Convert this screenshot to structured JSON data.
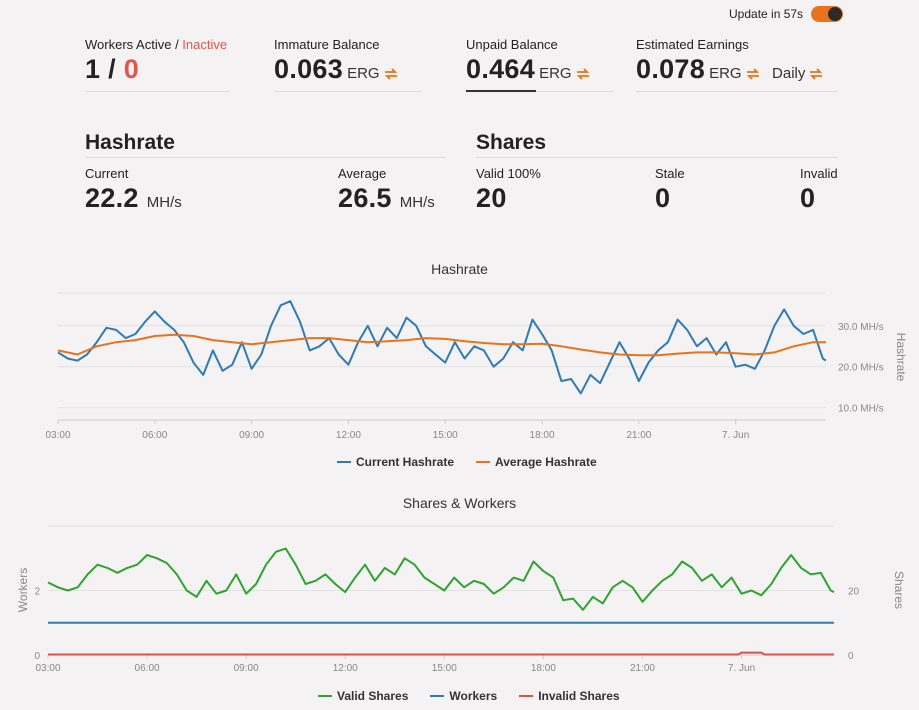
{
  "header": {
    "update_label": "Update in 57s",
    "toggle_on": true,
    "toggle_color": "#e8731c"
  },
  "stats": {
    "workers": {
      "label": "Workers Active",
      "sep": " / ",
      "inactive_label": "Inactive",
      "active": "1",
      "slash": " / ",
      "inactive": "0"
    },
    "immature": {
      "label": "Immature Balance",
      "value": "0.063",
      "unit": "ERG"
    },
    "unpaid": {
      "label": "Unpaid Balance",
      "value": "0.464",
      "unit": "ERG"
    },
    "estimated": {
      "label": "Estimated Earnings",
      "value": "0.078",
      "unit": "ERG",
      "period": "Daily"
    }
  },
  "hashrate": {
    "title": "Hashrate",
    "current_label": "Current",
    "current_value": "22.2",
    "current_unit": "MH/s",
    "average_label": "Average",
    "average_value": "26.5",
    "average_unit": "MH/s"
  },
  "shares": {
    "title": "Shares",
    "valid_label": "Valid 100%",
    "valid_value": "20",
    "stale_label": "Stale",
    "stale_value": "0",
    "invalid_label": "Invalid",
    "invalid_value": "0"
  },
  "colors": {
    "orange": "#e8731c",
    "blue": "#2e7bb5",
    "green": "#2fa32f",
    "workers_blue": "#2e7bb5",
    "red": "#d9534f"
  },
  "chart_data": [
    {
      "type": "line",
      "title": "Hashrate",
      "ylabel": "Hashrate",
      "ylim": [
        7,
        38
      ],
      "y_ticks": [
        "10.0 MH/s",
        "20.0 MH/s",
        "30.0 MH/s"
      ],
      "y_tick_values": [
        10,
        20,
        30
      ],
      "x_ticks": [
        "03:00",
        "06:00",
        "09:00",
        "12:00",
        "15:00",
        "18:00",
        "21:00",
        "7. Jun"
      ],
      "x_tick_hours": [
        3,
        6,
        9,
        12,
        15,
        18,
        21,
        24
      ],
      "xlim_hours": [
        3,
        26.8
      ],
      "series": [
        {
          "name": "Current Hashrate",
          "color": "#2e7bb5",
          "points": [
            [
              3.0,
              23.5
            ],
            [
              3.3,
              22
            ],
            [
              3.6,
              21.5
            ],
            [
              3.9,
              23
            ],
            [
              4.2,
              26
            ],
            [
              4.5,
              29.5
            ],
            [
              4.8,
              29
            ],
            [
              5.1,
              27
            ],
            [
              5.4,
              28
            ],
            [
              5.7,
              31
            ],
            [
              6.0,
              33.5
            ],
            [
              6.3,
              31
            ],
            [
              6.6,
              29
            ],
            [
              6.9,
              26
            ],
            [
              7.2,
              21
            ],
            [
              7.5,
              18
            ],
            [
              7.8,
              24
            ],
            [
              8.1,
              19
            ],
            [
              8.4,
              20.5
            ],
            [
              8.7,
              26
            ],
            [
              9.0,
              19.5
            ],
            [
              9.3,
              23
            ],
            [
              9.6,
              30
            ],
            [
              9.9,
              35
            ],
            [
              10.2,
              36
            ],
            [
              10.5,
              31
            ],
            [
              10.8,
              24
            ],
            [
              11.1,
              25
            ],
            [
              11.4,
              27
            ],
            [
              11.7,
              23
            ],
            [
              12.0,
              20.5
            ],
            [
              12.3,
              26
            ],
            [
              12.6,
              30
            ],
            [
              12.9,
              25
            ],
            [
              13.2,
              29.5
            ],
            [
              13.5,
              27
            ],
            [
              13.8,
              32
            ],
            [
              14.1,
              30
            ],
            [
              14.4,
              25
            ],
            [
              14.7,
              23
            ],
            [
              15.0,
              21
            ],
            [
              15.3,
              26
            ],
            [
              15.6,
              22
            ],
            [
              15.9,
              25
            ],
            [
              16.2,
              24
            ],
            [
              16.5,
              20
            ],
            [
              16.8,
              22
            ],
            [
              17.1,
              26
            ],
            [
              17.4,
              24
            ],
            [
              17.7,
              31.5
            ],
            [
              18.0,
              28
            ],
            [
              18.3,
              24
            ],
            [
              18.6,
              16.5
            ],
            [
              18.9,
              17
            ],
            [
              19.2,
              13.5
            ],
            [
              19.5,
              18
            ],
            [
              19.8,
              16
            ],
            [
              20.1,
              21
            ],
            [
              20.4,
              26
            ],
            [
              20.7,
              22
            ],
            [
              21.0,
              16.5
            ],
            [
              21.3,
              21
            ],
            [
              21.6,
              24
            ],
            [
              21.9,
              26
            ],
            [
              22.2,
              31.5
            ],
            [
              22.5,
              29
            ],
            [
              22.8,
              25
            ],
            [
              23.1,
              27
            ],
            [
              23.4,
              23
            ],
            [
              23.7,
              26
            ],
            [
              24.0,
              20
            ],
            [
              24.3,
              20.5
            ],
            [
              24.6,
              19.5
            ],
            [
              24.9,
              24
            ],
            [
              25.2,
              30
            ],
            [
              25.5,
              34
            ],
            [
              25.8,
              30
            ],
            [
              26.1,
              28
            ],
            [
              26.4,
              29
            ],
            [
              26.7,
              22
            ],
            [
              26.8,
              21.5
            ]
          ]
        },
        {
          "name": "Average Hashrate",
          "color": "#e8731c",
          "points": [
            [
              3.0,
              24
            ],
            [
              3.6,
              23
            ],
            [
              4.2,
              25
            ],
            [
              4.8,
              26
            ],
            [
              5.4,
              26.5
            ],
            [
              6.0,
              27.5
            ],
            [
              6.6,
              27.8
            ],
            [
              7.2,
              27.5
            ],
            [
              7.8,
              26.5
            ],
            [
              8.4,
              26
            ],
            [
              9.0,
              25.5
            ],
            [
              9.6,
              26
            ],
            [
              10.2,
              26.5
            ],
            [
              10.8,
              27
            ],
            [
              11.4,
              27
            ],
            [
              12.0,
              26.5
            ],
            [
              12.6,
              26
            ],
            [
              13.2,
              26.2
            ],
            [
              13.8,
              26.5
            ],
            [
              14.4,
              27
            ],
            [
              15.0,
              26.8
            ],
            [
              15.6,
              26.2
            ],
            [
              16.2,
              25.8
            ],
            [
              16.8,
              25.5
            ],
            [
              17.4,
              25.5
            ],
            [
              18.0,
              25.6
            ],
            [
              18.6,
              25
            ],
            [
              19.2,
              24.2
            ],
            [
              19.8,
              23.5
            ],
            [
              20.4,
              23
            ],
            [
              21.0,
              22.8
            ],
            [
              21.6,
              22.8
            ],
            [
              22.2,
              23.2
            ],
            [
              22.8,
              23.5
            ],
            [
              23.4,
              23.5
            ],
            [
              24.0,
              23.3
            ],
            [
              24.6,
              23
            ],
            [
              25.2,
              23.5
            ],
            [
              25.8,
              25
            ],
            [
              26.4,
              26
            ],
            [
              26.8,
              26
            ]
          ]
        }
      ]
    },
    {
      "type": "line",
      "title": "Shares & Workers",
      "ylabel_left": "Workers",
      "ylabel_right": "Shares",
      "y_ticks_left": [
        "0",
        "2"
      ],
      "y_ticks_right": [
        "0",
        "20"
      ],
      "x_ticks": [
        "03:00",
        "06:00",
        "09:00",
        "12:00",
        "15:00",
        "18:00",
        "21:00",
        "7. Jun"
      ],
      "x_tick_hours": [
        3,
        6,
        9,
        12,
        15,
        18,
        21,
        24
      ],
      "xlim_hours": [
        3,
        26.8
      ],
      "ylim_shares": [
        0,
        40
      ],
      "ylim_workers": [
        0,
        4
      ],
      "series": [
        {
          "name": "Valid Shares",
          "color": "#2fa32f",
          "points": [
            [
              3.0,
              22.5
            ],
            [
              3.3,
              21
            ],
            [
              3.6,
              20
            ],
            [
              3.9,
              21
            ],
            [
              4.2,
              25
            ],
            [
              4.5,
              28
            ],
            [
              4.8,
              27
            ],
            [
              5.1,
              25.5
            ],
            [
              5.4,
              27
            ],
            [
              5.7,
              28
            ],
            [
              6.0,
              31
            ],
            [
              6.3,
              30
            ],
            [
              6.6,
              28.5
            ],
            [
              6.9,
              25
            ],
            [
              7.2,
              20
            ],
            [
              7.5,
              18
            ],
            [
              7.8,
              23
            ],
            [
              8.1,
              19
            ],
            [
              8.4,
              20
            ],
            [
              8.7,
              25
            ],
            [
              9.0,
              19
            ],
            [
              9.3,
              22
            ],
            [
              9.6,
              28
            ],
            [
              9.9,
              32
            ],
            [
              10.2,
              33
            ],
            [
              10.5,
              28
            ],
            [
              10.8,
              22
            ],
            [
              11.1,
              23
            ],
            [
              11.4,
              25
            ],
            [
              11.7,
              22
            ],
            [
              12.0,
              19.5
            ],
            [
              12.3,
              24
            ],
            [
              12.6,
              28
            ],
            [
              12.9,
              23
            ],
            [
              13.2,
              27
            ],
            [
              13.5,
              25
            ],
            [
              13.8,
              30
            ],
            [
              14.1,
              28
            ],
            [
              14.4,
              24
            ],
            [
              14.7,
              22
            ],
            [
              15.0,
              20
            ],
            [
              15.3,
              24
            ],
            [
              15.6,
              21
            ],
            [
              15.9,
              23
            ],
            [
              16.2,
              22
            ],
            [
              16.5,
              19
            ],
            [
              16.8,
              21
            ],
            [
              17.1,
              24
            ],
            [
              17.4,
              23
            ],
            [
              17.7,
              29
            ],
            [
              18.0,
              26
            ],
            [
              18.3,
              24
            ],
            [
              18.6,
              17
            ],
            [
              18.9,
              17.5
            ],
            [
              19.2,
              14
            ],
            [
              19.5,
              18
            ],
            [
              19.8,
              16
            ],
            [
              20.1,
              21
            ],
            [
              20.4,
              23
            ],
            [
              20.7,
              21
            ],
            [
              21.0,
              16.5
            ],
            [
              21.3,
              20
            ],
            [
              21.6,
              23
            ],
            [
              21.9,
              25
            ],
            [
              22.2,
              29
            ],
            [
              22.5,
              27
            ],
            [
              22.8,
              23
            ],
            [
              23.1,
              25
            ],
            [
              23.4,
              21
            ],
            [
              23.7,
              24
            ],
            [
              24.0,
              19
            ],
            [
              24.3,
              20
            ],
            [
              24.6,
              18.5
            ],
            [
              24.9,
              22
            ],
            [
              25.2,
              27
            ],
            [
              25.5,
              31
            ],
            [
              25.8,
              27
            ],
            [
              26.1,
              25
            ],
            [
              26.4,
              25.5
            ],
            [
              26.7,
              20
            ],
            [
              26.8,
              19.5
            ]
          ]
        },
        {
          "name": "Workers",
          "color": "#2e7bb5",
          "constant": 1
        },
        {
          "name": "Invalid Shares",
          "color": "#d9534f",
          "points": [
            [
              3.0,
              0
            ],
            [
              23.9,
              0
            ],
            [
              24.0,
              0.6
            ],
            [
              24.6,
              0.6
            ],
            [
              24.7,
              0
            ],
            [
              26.8,
              0
            ]
          ]
        }
      ]
    }
  ]
}
